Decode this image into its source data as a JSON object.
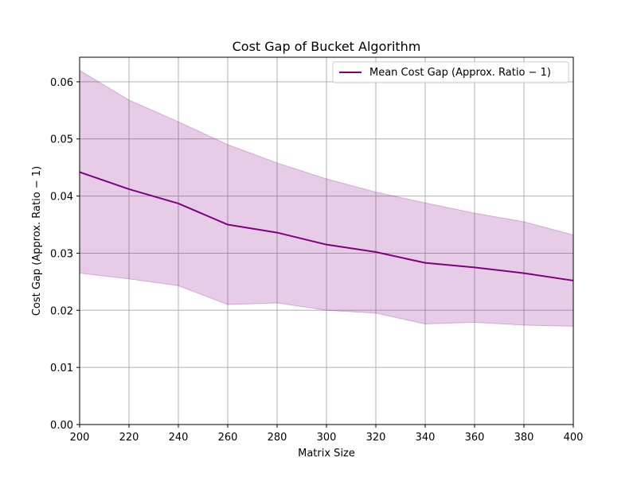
{
  "chart_data": {
    "type": "line",
    "title": "Cost Gap of Bucket Algorithm",
    "xlabel": "Matrix Size",
    "ylabel": "Cost Gap (Approx. Ratio − 1)",
    "xlim": [
      200,
      400
    ],
    "ylim": [
      0,
      0.0643
    ],
    "x": [
      200,
      220,
      240,
      260,
      280,
      300,
      320,
      340,
      360,
      380,
      400
    ],
    "xticks": [
      200,
      220,
      240,
      260,
      280,
      300,
      320,
      340,
      360,
      380,
      400
    ],
    "xtick_labels": [
      "200",
      "220",
      "240",
      "260",
      "280",
      "300",
      "320",
      "340",
      "360",
      "380",
      "400"
    ],
    "yticks": [
      0,
      0.01,
      0.02,
      0.03,
      0.04,
      0.05,
      0.06
    ],
    "ytick_labels": [
      "0.00",
      "0.01",
      "0.02",
      "0.03",
      "0.04",
      "0.05",
      "0.06"
    ],
    "grid": true,
    "legend_position": "top-right",
    "series": [
      {
        "name": "Mean Cost Gap (Approx. Ratio − 1)",
        "color": "#800080",
        "values": [
          0.0442,
          0.0412,
          0.0387,
          0.035,
          0.0336,
          0.0315,
          0.0302,
          0.0283,
          0.0275,
          0.0265,
          0.0252
        ]
      }
    ],
    "band": {
      "color": "#800080",
      "opacity": 0.2,
      "upper": [
        0.062,
        0.0568,
        0.053,
        0.049,
        0.0458,
        0.043,
        0.0407,
        0.0388,
        0.037,
        0.0355,
        0.0332
      ],
      "lower": [
        0.0265,
        0.0255,
        0.0243,
        0.021,
        0.0213,
        0.02,
        0.0195,
        0.0176,
        0.0179,
        0.0174,
        0.0172
      ]
    }
  }
}
